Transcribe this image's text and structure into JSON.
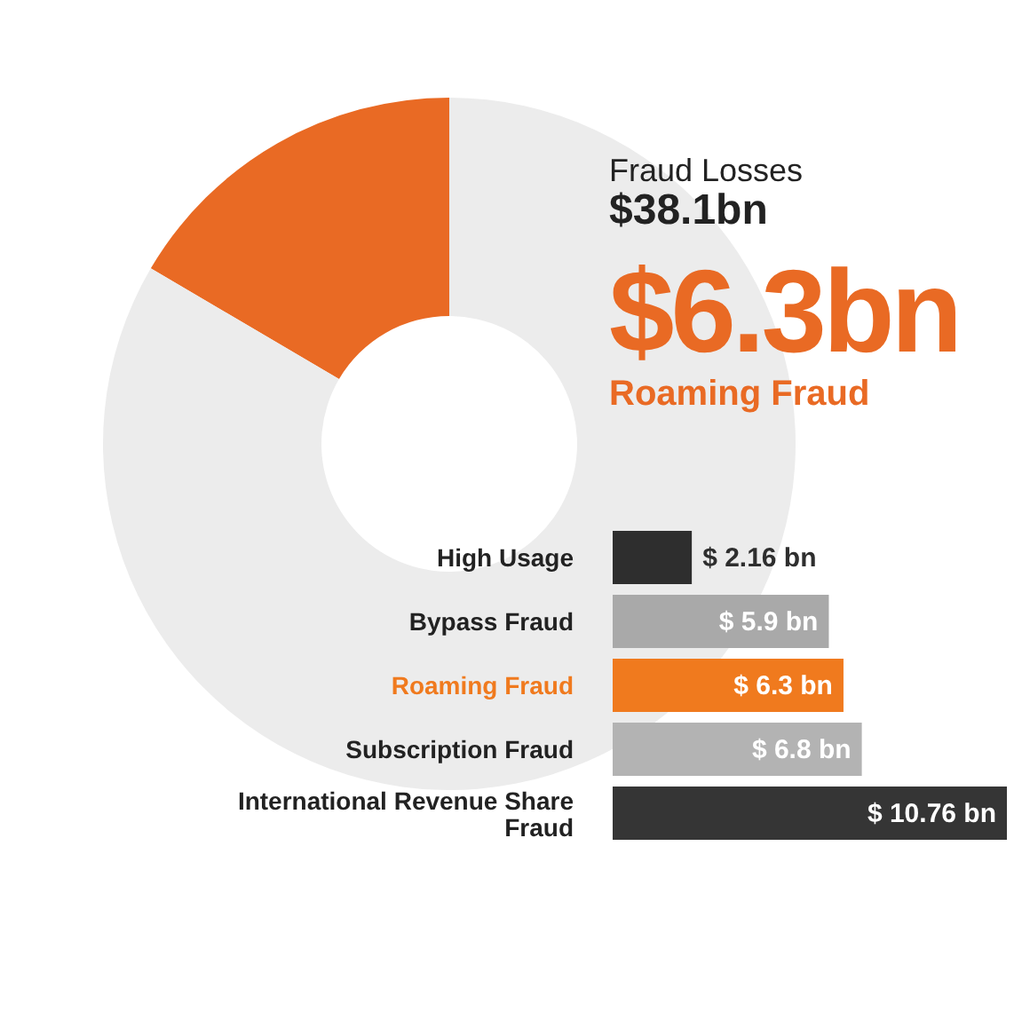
{
  "chart_data": [
    {
      "type": "donut",
      "categories": [
        null,
        null
      ],
      "values": [
        16.54,
        83.46
      ],
      "colors": [
        "#e96a24",
        "#ececec"
      ],
      "annotations": [
        "Fraud Losses",
        "$38.1bn",
        "$6.3bn",
        "Roaming Fraud"
      ]
    },
    {
      "type": "bar",
      "orientation": "horizontal",
      "categories": [
        "High Usage",
        "Bypass Fraud",
        "Roaming Fraud",
        "Subscription Fraud",
        "International Revenue Share Fraud"
      ],
      "values": [
        2.16,
        5.9,
        6.3,
        6.8,
        10.76
      ],
      "colors": [
        "#2e2e2e",
        "#a9a9a9",
        "#f07a1e",
        "#b3b3b3",
        "#353535"
      ],
      "value_labels": [
        "$ 2.16 bn",
        "$ 5.9 bn",
        "$ 6.3 bn",
        "$ 6.8 bn",
        "$ 10.76 bn"
      ],
      "tick_labels": "y"
    }
  ]
}
